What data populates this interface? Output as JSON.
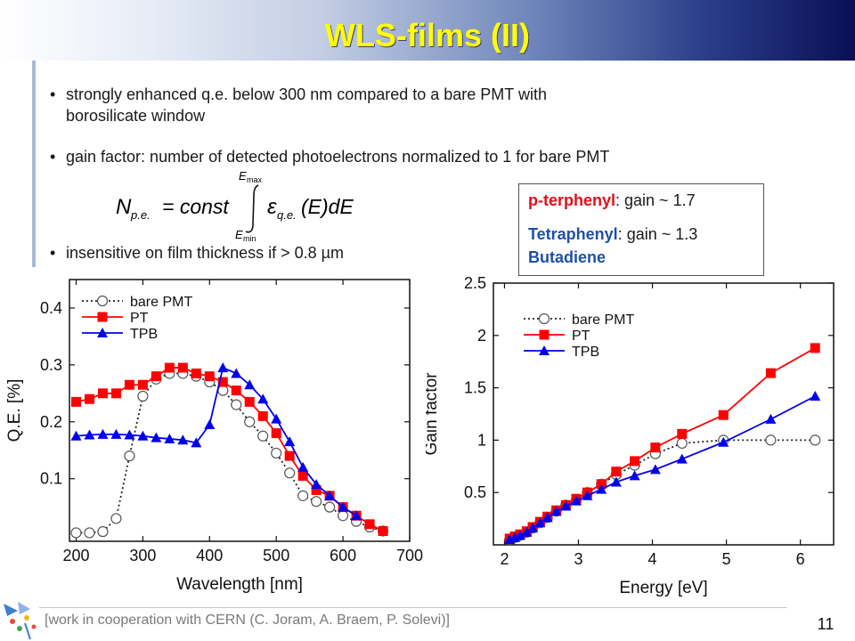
{
  "slide": {
    "title": "WLS-films (II)",
    "page_number": "11",
    "footnote": "[work in cooperation with CERN (C. Joram, A. Braem, P. Solevi)]"
  },
  "bullets": [
    {
      "text": "strongly enhanced q.e. below 300 nm compared to a bare PMT with",
      "text2": "borosilicate window"
    },
    {
      "text": "gain factor: number of detected photoelectrons normalized to 1 for bare PMT"
    },
    {
      "text": "insensitive on film thickness if > 0.8 µm"
    }
  ],
  "formula": {
    "lhs_N": "N",
    "lhs_sub": "p.e.",
    "eq": "= const",
    "upper": "E",
    "upper_sub": "max",
    "lower": "E",
    "lower_sub": "min",
    "eps": "ε",
    "eps_sub": "q.e.",
    "rest": "(E)dE"
  },
  "gain_box": {
    "line1_name": "p-terphenyl",
    "line1_rest": ": gain ~ 1.7",
    "line2_name": "Tetraphenyl",
    "line2_rest": ": gain ~ 1.3",
    "line3_name": "Butadiene"
  },
  "colors": {
    "bare": "#222222",
    "pt": "#ff0000",
    "tpb": "#0000ee",
    "accent_text": "#e0101a",
    "blue_text": "#1f4fa8",
    "title": "#ffff00"
  },
  "chart_data": [
    {
      "type": "line",
      "xlabel": "Wavelength [nm]",
      "ylabel": "Q.E. [%]",
      "xlim": [
        190,
        700
      ],
      "ylim": [
        -0.01,
        0.45
      ],
      "xticks": [
        200,
        300,
        400,
        500,
        600,
        700
      ],
      "yticks": [
        0.1,
        0.2,
        0.3,
        0.4
      ],
      "ytick_labels": [
        "0.1",
        "0.2",
        "0.3",
        "0.4"
      ],
      "legend": "top-left",
      "series": [
        {
          "name": "bare PMT",
          "marker": "circle",
          "style": "dotted",
          "x": [
            200,
            220,
            240,
            260,
            280,
            300,
            320,
            340,
            360,
            380,
            400,
            420,
            440,
            460,
            480,
            500,
            520,
            540,
            560,
            580,
            600,
            620,
            640,
            660
          ],
          "y": [
            0.005,
            0.005,
            0.007,
            0.03,
            0.14,
            0.245,
            0.275,
            0.285,
            0.285,
            0.28,
            0.27,
            0.255,
            0.23,
            0.2,
            0.175,
            0.145,
            0.11,
            0.07,
            0.06,
            0.05,
            0.035,
            0.025,
            0.015,
            0.008
          ]
        },
        {
          "name": "PT",
          "marker": "square",
          "style": "solid",
          "x": [
            200,
            220,
            240,
            260,
            280,
            300,
            320,
            340,
            360,
            380,
            400,
            420,
            440,
            460,
            480,
            500,
            520,
            540,
            560,
            580,
            600,
            620,
            640,
            660
          ],
          "y": [
            0.235,
            0.24,
            0.25,
            0.25,
            0.265,
            0.265,
            0.28,
            0.295,
            0.295,
            0.285,
            0.28,
            0.27,
            0.255,
            0.235,
            0.21,
            0.18,
            0.14,
            0.105,
            0.08,
            0.07,
            0.05,
            0.035,
            0.02,
            0.008
          ]
        },
        {
          "name": "TPB",
          "marker": "triangle",
          "style": "solid",
          "x": [
            200,
            220,
            240,
            260,
            280,
            300,
            320,
            340,
            360,
            380,
            400,
            420,
            440,
            460,
            480,
            500,
            520,
            540,
            560,
            580,
            600,
            620
          ],
          "y": [
            0.175,
            0.177,
            0.178,
            0.178,
            0.177,
            0.175,
            0.172,
            0.17,
            0.168,
            0.163,
            0.195,
            0.295,
            0.285,
            0.265,
            0.24,
            0.205,
            0.165,
            0.12,
            0.09,
            0.07,
            0.05,
            0.035
          ]
        }
      ]
    },
    {
      "type": "line",
      "xlabel": "Energy [eV]",
      "ylabel": "Gain factor",
      "xlim": [
        1.85,
        6.45
      ],
      "ylim": [
        0,
        2.5
      ],
      "xticks": [
        2,
        3,
        4,
        5,
        6
      ],
      "yticks": [
        0.5,
        1,
        1.5,
        2,
        2.5
      ],
      "ytick_labels": [
        "0.5",
        "1",
        "1.5",
        "2",
        "2.5"
      ],
      "legend": "top-left",
      "series": [
        {
          "name": "bare PMT",
          "marker": "circle",
          "style": "dotted",
          "x": [
            2.07,
            2.14,
            2.21,
            2.3,
            2.38,
            2.48,
            2.58,
            2.7,
            2.83,
            2.97,
            3.12,
            3.31,
            3.51,
            3.76,
            4.04,
            4.4,
            4.96,
            5.6,
            6.2
          ],
          "y": [
            0.05,
            0.07,
            0.09,
            0.12,
            0.16,
            0.21,
            0.26,
            0.32,
            0.38,
            0.43,
            0.5,
            0.58,
            0.67,
            0.76,
            0.87,
            0.97,
            1.0,
            1.0,
            1.0
          ]
        },
        {
          "name": "PT",
          "marker": "square",
          "style": "solid",
          "x": [
            2.07,
            2.14,
            2.21,
            2.3,
            2.38,
            2.48,
            2.58,
            2.7,
            2.83,
            2.97,
            3.12,
            3.31,
            3.51,
            3.76,
            4.04,
            4.4,
            4.96,
            5.6,
            6.2
          ],
          "y": [
            0.06,
            0.08,
            0.1,
            0.13,
            0.17,
            0.22,
            0.27,
            0.33,
            0.38,
            0.44,
            0.5,
            0.58,
            0.7,
            0.8,
            0.93,
            1.06,
            1.24,
            1.64,
            1.88
          ]
        },
        {
          "name": "TPB",
          "marker": "triangle",
          "style": "solid",
          "x": [
            2.07,
            2.14,
            2.21,
            2.3,
            2.38,
            2.48,
            2.58,
            2.7,
            2.83,
            2.97,
            3.12,
            3.31,
            3.51,
            3.76,
            4.04,
            4.4,
            4.96,
            5.6,
            6.2
          ],
          "y": [
            0.05,
            0.07,
            0.09,
            0.12,
            0.16,
            0.21,
            0.26,
            0.32,
            0.37,
            0.42,
            0.47,
            0.53,
            0.6,
            0.66,
            0.72,
            0.82,
            0.98,
            1.2,
            1.42
          ]
        }
      ]
    }
  ]
}
